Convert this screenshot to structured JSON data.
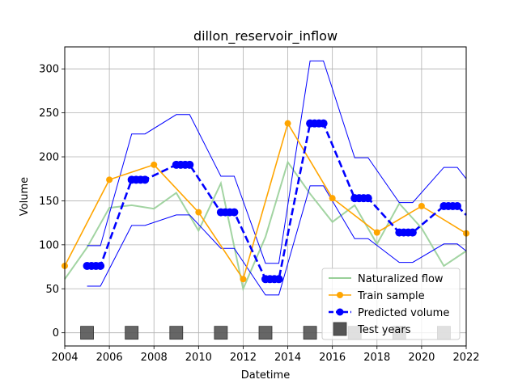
{
  "chart_data": {
    "type": "line",
    "title": "dillon_reservoir_inflow",
    "xlabel": "Datetime",
    "ylabel": "Volume",
    "xlim": [
      2004,
      2022
    ],
    "ylim": [
      -15,
      325
    ],
    "xticks": [
      2004,
      2006,
      2008,
      2010,
      2012,
      2014,
      2016,
      2018,
      2020,
      2022
    ],
    "xtick_labels": [
      "2004",
      "2006",
      "2008",
      "2010",
      "2012",
      "2014",
      "2016",
      "2018",
      "2020",
      "2022"
    ],
    "yticks": [
      0,
      50,
      100,
      150,
      200,
      250,
      300
    ],
    "ytick_labels": [
      "0",
      "50",
      "100",
      "150",
      "200",
      "250",
      "300"
    ],
    "grid": true,
    "legend_position": "lower-right",
    "series": [
      {
        "name": "Naturalized flow",
        "style": "line",
        "color": "#98cf98",
        "x": [
          2004,
          2005,
          2006,
          2007,
          2008,
          2009,
          2010,
          2011,
          2012,
          2013,
          2014,
          2015,
          2016,
          2017,
          2018,
          2019,
          2020,
          2021,
          2022
        ],
        "y": [
          61,
          97,
          142,
          145,
          141,
          159,
          116,
          170,
          50,
          109,
          194,
          158,
          126,
          145,
          101,
          147,
          119,
          76,
          93
        ]
      },
      {
        "name": "Train sample",
        "style": "line-marker",
        "color": "#ffa500",
        "x": [
          2004,
          2006,
          2008,
          2010,
          2012,
          2014,
          2016,
          2018,
          2020,
          2022
        ],
        "y": [
          76,
          174,
          191,
          137,
          61,
          238,
          153,
          114,
          144,
          113
        ]
      },
      {
        "name": "Predicted volume",
        "style": "dashed-marker",
        "color": "#0000ff",
        "x": [
          2005,
          2005.2,
          2005.4,
          2005.6,
          2007,
          2007.2,
          2007.4,
          2007.6,
          2009,
          2009.2,
          2009.4,
          2009.6,
          2011,
          2011.2,
          2011.4,
          2011.6,
          2013,
          2013.2,
          2013.4,
          2013.6,
          2015,
          2015.2,
          2015.4,
          2015.6,
          2017,
          2017.2,
          2017.4,
          2017.6,
          2019,
          2019.2,
          2019.4,
          2019.6,
          2021,
          2021.2,
          2021.4,
          2021.6,
          2022
        ],
        "y": [
          76,
          76,
          76,
          76,
          174,
          174,
          174,
          174,
          191,
          191,
          191,
          191,
          137,
          137,
          137,
          137,
          61,
          61,
          61,
          61,
          238,
          238,
          238,
          238,
          153,
          153,
          153,
          153,
          114,
          114,
          114,
          114,
          144,
          144,
          144,
          144,
          134
        ]
      },
      {
        "name": "",
        "style": "band-upper",
        "color": "#0000ff",
        "x": [
          2005,
          2005.6,
          2007,
          2007.6,
          2009,
          2009.6,
          2011,
          2011.6,
          2013,
          2013.6,
          2015,
          2015.6,
          2017,
          2017.6,
          2019,
          2019.6,
          2021,
          2021.6,
          2022
        ],
        "y": [
          99,
          99,
          226,
          226,
          248,
          248,
          178,
          178,
          79,
          79,
          309,
          309,
          199,
          199,
          148,
          148,
          188,
          188,
          175
        ]
      },
      {
        "name": "",
        "style": "band-lower",
        "color": "#0000ff",
        "x": [
          2005,
          2005.6,
          2007,
          2007.6,
          2009,
          2009.6,
          2011,
          2011.6,
          2013,
          2013.6,
          2015,
          2015.6,
          2017,
          2017.6,
          2019,
          2019.6,
          2021,
          2021.6,
          2022
        ],
        "y": [
          53,
          53,
          122,
          122,
          134,
          134,
          96,
          96,
          43,
          43,
          167,
          167,
          107,
          107,
          80,
          80,
          101,
          101,
          93
        ]
      },
      {
        "name": "Test years",
        "style": "square-marker",
        "color": "#555555",
        "x": [
          2005,
          2007,
          2009,
          2011,
          2013,
          2015,
          2017,
          2019,
          2021
        ],
        "y": [
          0,
          0,
          0,
          0,
          0,
          0,
          0,
          0,
          0
        ]
      }
    ]
  }
}
